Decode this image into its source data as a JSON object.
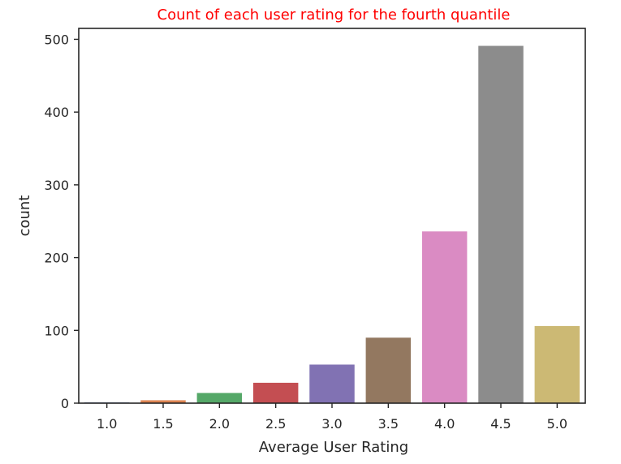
{
  "chart_data": {
    "type": "bar",
    "title": "Count of each user rating for the fourth quantile",
    "xlabel": "Average User Rating",
    "ylabel": "count",
    "categories": [
      "1.0",
      "1.5",
      "2.0",
      "2.5",
      "3.0",
      "3.5",
      "4.0",
      "4.5",
      "5.0"
    ],
    "values": [
      1,
      4,
      14,
      28,
      53,
      90,
      236,
      491,
      106
    ],
    "ylim": [
      0,
      515
    ],
    "yticks": [
      0,
      100,
      200,
      300,
      400,
      500
    ],
    "grid": false,
    "colors": [
      "#4c72b0",
      "#dd8452",
      "#55a868",
      "#c44e52",
      "#8172b3",
      "#937860",
      "#da8bc3",
      "#8c8c8c",
      "#ccb974"
    ]
  }
}
